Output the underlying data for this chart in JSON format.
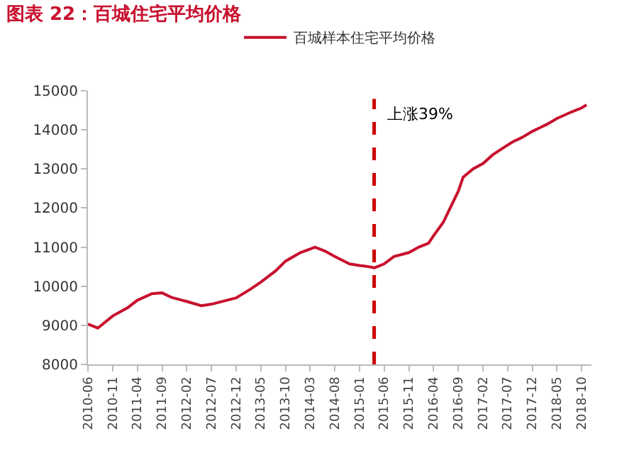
{
  "chart_data": {
    "type": "line",
    "title": "图表 22：百城住宅平均价格",
    "x": [
      "2010-06",
      "2010-08",
      "2010-11",
      "2011-02",
      "2011-04",
      "2011-07",
      "2011-09",
      "2011-11",
      "2012-02",
      "2012-05",
      "2012-07",
      "2012-12",
      "2013-03",
      "2013-05",
      "2013-08",
      "2013-10",
      "2014-01",
      "2014-03",
      "2014-04",
      "2014-06",
      "2014-08",
      "2014-11",
      "2015-01",
      "2015-03",
      "2015-04",
      "2015-06",
      "2015-08",
      "2015-11",
      "2016-01",
      "2016-03",
      "2016-04",
      "2016-06",
      "2016-07",
      "2016-09",
      "2016-10",
      "2016-12",
      "2017-02",
      "2017-04",
      "2017-06",
      "2017-08",
      "2017-10",
      "2017-12",
      "2018-03",
      "2018-05",
      "2018-08",
      "2018-10",
      "2018-11"
    ],
    "series": [
      {
        "name": "百城样本住宅平均价格",
        "color": "#c8102e",
        "values": [
          9030,
          8930,
          9240,
          9450,
          9640,
          9810,
          9830,
          9710,
          9610,
          9500,
          9540,
          9700,
          9930,
          10100,
          10390,
          10640,
          10860,
          10950,
          11000,
          10900,
          10760,
          10570,
          10530,
          10500,
          10470,
          10570,
          10760,
          10860,
          11000,
          11100,
          11290,
          11640,
          11900,
          12430,
          12790,
          13000,
          13140,
          13360,
          13530,
          13690,
          13810,
          13960,
          14140,
          14290,
          14460,
          14560,
          14640
        ]
      }
    ],
    "xlim": [
      "2010-06",
      "2018-12"
    ],
    "xticks": [
      "2010-06",
      "2010-11",
      "2011-04",
      "2011-09",
      "2012-02",
      "2012-07",
      "2012-12",
      "2013-05",
      "2013-10",
      "2014-03",
      "2014-08",
      "2015-01",
      "2015-06",
      "2015-11",
      "2016-04",
      "2016-09",
      "2017-02",
      "2017-07",
      "2017-12",
      "2018-05",
      "2018-10"
    ],
    "ylim": [
      8000,
      15000
    ],
    "yticks": [
      8000,
      9000,
      10000,
      11000,
      12000,
      13000,
      14000,
      15000
    ],
    "ref_lines": [
      {
        "axis": "x",
        "value": "2015-04",
        "color": "#cc0000",
        "line_style": "dashed"
      }
    ],
    "annotations": [
      "上涨39%"
    ],
    "grid": false,
    "legend": "top",
    "marker": "none",
    "line_style": "solid"
  }
}
